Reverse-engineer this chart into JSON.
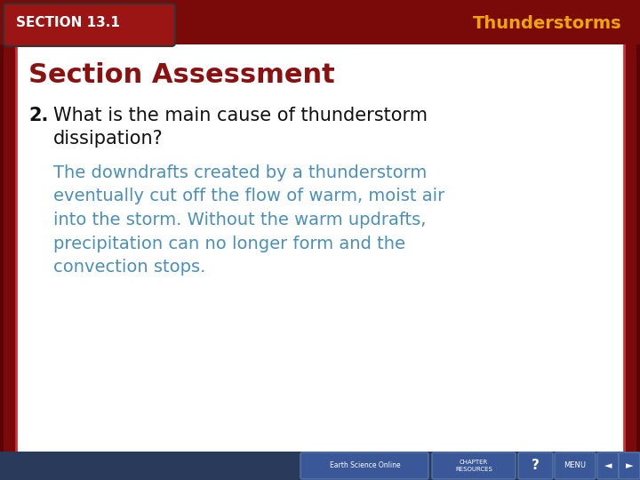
{
  "bg_color": "#7a0a0a",
  "slide_bg": "#ffffff",
  "header_bg": "#7a0a0a",
  "section_tab_bg": "#8b1a1a",
  "section_tab_text": "SECTION 13.1",
  "section_tab_color": "#ffffff",
  "header_title": "Thunderstorms",
  "header_title_color": "#f0a500",
  "section_assessment_title": "Section Assessment",
  "section_assessment_color": "#8b1010",
  "question_number": "2.",
  "question_text": "What is the main cause of thunderstorm\ndissipation?",
  "question_color": "#111111",
  "answer_text": "The downdrafts created by a thunderstorm\neventually cut off the flow of warm, moist air\ninto the storm. Without the warm updrafts,\nprecipitation can no longer form and the\nconvection stops.",
  "answer_color": "#4a90b8",
  "footer_bg": "#3a5080",
  "figsize": [
    7.2,
    5.4
  ],
  "dpi": 100
}
